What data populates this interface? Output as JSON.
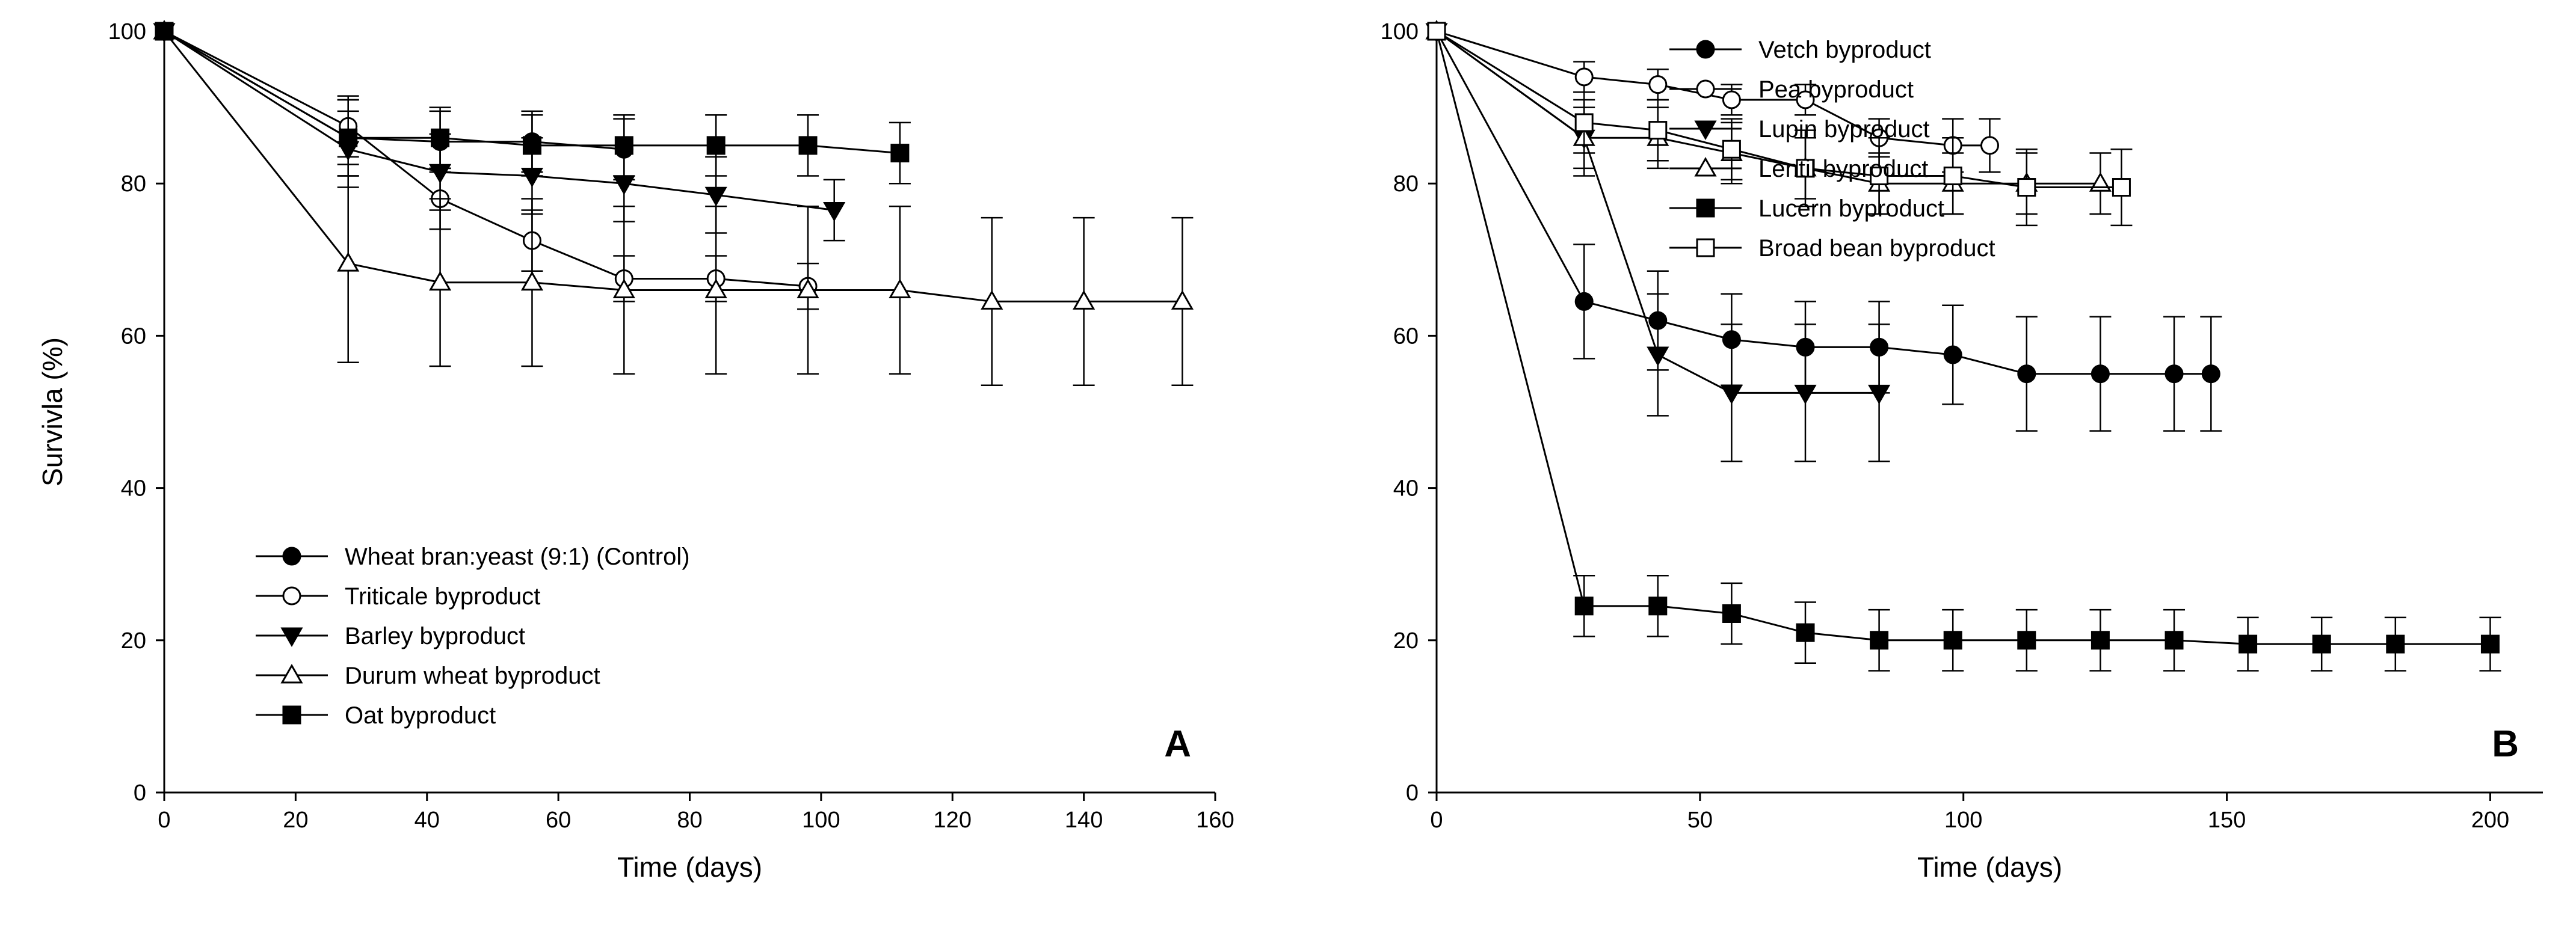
{
  "chart_data": [
    {
      "type": "line",
      "panel_label": "A",
      "xlabel": "Time (days)",
      "ylabel": "Survivla (%)",
      "xlim": [
        0,
        160
      ],
      "ylim": [
        0,
        100
      ],
      "xticks": [
        0,
        20,
        40,
        60,
        80,
        100,
        120,
        140,
        160
      ],
      "yticks": [
        0,
        20,
        40,
        60,
        80,
        100
      ],
      "legend_position": "lower-left",
      "series": [
        {
          "name": "Wheat bran:yeast (9:1) (Control)",
          "marker": "circle-filled",
          "x": [
            0,
            28,
            42,
            56,
            70
          ],
          "y": [
            100,
            86,
            85.5,
            85.5,
            84.5
          ],
          "err": [
            0,
            5,
            4,
            4,
            4
          ]
        },
        {
          "name": "Triticale byproduct",
          "marker": "circle-open",
          "x": [
            0,
            28,
            42,
            56,
            70,
            84,
            98
          ],
          "y": [
            100,
            87.5,
            78,
            72.5,
            67.5,
            67.5,
            66.5
          ],
          "err": [
            0,
            4,
            4,
            4,
            3,
            3,
            3
          ]
        },
        {
          "name": "Barley byproduct",
          "marker": "triangle-down-filled",
          "x": [
            0,
            28,
            42,
            56,
            70,
            84,
            102
          ],
          "y": [
            100,
            84.5,
            81.5,
            81,
            80,
            78.5,
            76.5
          ],
          "err": [
            0,
            5,
            5,
            5,
            5,
            5,
            4
          ]
        },
        {
          "name": "Durum wheat byproduct",
          "marker": "triangle-up-open",
          "x": [
            0,
            28,
            42,
            56,
            70,
            84,
            98,
            112,
            126,
            140,
            155
          ],
          "y": [
            100,
            69.5,
            67,
            67,
            66,
            66,
            66,
            66,
            64.5,
            64.5,
            64.5
          ],
          "err": [
            0,
            13,
            11,
            11,
            11,
            11,
            11,
            11,
            11,
            11,
            11
          ]
        },
        {
          "name": "Oat byproduct",
          "marker": "square-filled",
          "x": [
            0,
            28,
            42,
            56,
            70,
            84,
            98,
            112
          ],
          "y": [
            100,
            86,
            86,
            85,
            85,
            85,
            85,
            84
          ],
          "err": [
            0,
            5,
            4,
            4,
            4,
            4,
            4,
            4
          ]
        }
      ]
    },
    {
      "type": "line",
      "panel_label": "B",
      "xlabel": "Time (days)",
      "ylabel": "",
      "xlim": [
        0,
        210
      ],
      "ylim": [
        0,
        100
      ],
      "xticks": [
        0,
        50,
        100,
        150,
        200
      ],
      "yticks": [
        0,
        20,
        40,
        60,
        80,
        100
      ],
      "legend_position": "top-right",
      "series": [
        {
          "name": "Vetch byproduct",
          "marker": "circle-filled",
          "x": [
            0,
            28,
            42,
            56,
            70,
            84,
            98,
            112,
            126,
            140,
            147
          ],
          "y": [
            100,
            64.5,
            62,
            59.5,
            58.5,
            58.5,
            57.5,
            55,
            55,
            55,
            55
          ],
          "err": [
            0,
            7.5,
            6.5,
            6,
            6,
            6,
            6.5,
            7.5,
            7.5,
            7.5,
            7.5
          ]
        },
        {
          "name": "Pea byproduct",
          "marker": "circle-open",
          "x": [
            0,
            28,
            42,
            56,
            70,
            84,
            98,
            105
          ],
          "y": [
            100,
            94,
            93,
            91,
            91,
            86,
            85,
            85
          ],
          "err": [
            0,
            2,
            2,
            2,
            2,
            2.5,
            3.5,
            3.5
          ]
        },
        {
          "name": "Lupin byproduct",
          "marker": "triangle-down-filled",
          "x": [
            0,
            28,
            42,
            56,
            70,
            84
          ],
          "y": [
            100,
            86,
            57.5,
            52.5,
            52.5,
            52.5
          ],
          "err": [
            0,
            5,
            8,
            9,
            9,
            9
          ]
        },
        {
          "name": "Lentil byproduct",
          "marker": "triangle-up-open",
          "x": [
            0,
            28,
            42,
            56,
            70,
            84,
            98,
            112,
            126
          ],
          "y": [
            100,
            86,
            86,
            84,
            82,
            80,
            80,
            80,
            80
          ],
          "err": [
            0,
            4,
            4,
            4,
            4,
            4,
            4,
            4,
            4
          ]
        },
        {
          "name": "Lucern byproduct",
          "marker": "square-filled",
          "x": [
            0,
            28,
            42,
            56,
            70,
            84,
            98,
            112,
            126,
            140,
            154,
            168,
            182,
            200
          ],
          "y": [
            100,
            24.5,
            24.5,
            23.5,
            21,
            20,
            20,
            20,
            20,
            20,
            19.5,
            19.5,
            19.5,
            19.5
          ],
          "err": [
            0,
            4,
            4,
            4,
            4,
            4,
            4,
            4,
            4,
            4,
            3.5,
            3.5,
            3.5,
            3.5
          ]
        },
        {
          "name": "Broad bean byproduct",
          "marker": "square-open",
          "x": [
            0,
            28,
            42,
            56,
            70,
            84,
            98,
            112,
            130
          ],
          "y": [
            100,
            88,
            87,
            84.5,
            82,
            81,
            81,
            79.5,
            79.5
          ],
          "err": [
            0,
            4,
            4,
            4,
            5,
            5,
            5,
            5,
            5
          ]
        }
      ]
    }
  ]
}
